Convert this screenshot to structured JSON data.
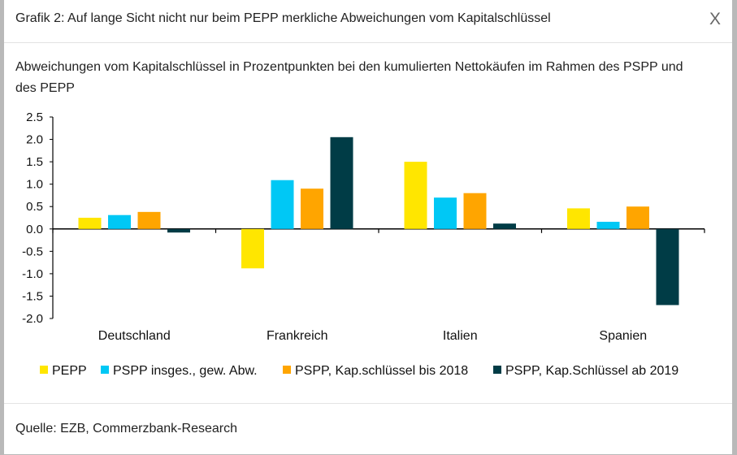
{
  "dialog": {
    "title": "Grafik 2: Auf lange Sicht nicht nur beim PEPP merkliche Abweichungen vom Kapitalschlüssel",
    "close_label": "X",
    "subtitle": "Abweichungen vom Kapitalschlüssel in Prozentpunkten bei den kumulierten Nettokäufen im Rahmen des PSPP und des PEPP",
    "source": "Quelle: EZB, Commerzbank-Research"
  },
  "chart_data": {
    "type": "bar",
    "title": "Abweichungen vom Kapitalschlüssel in Prozentpunkten bei den kumulierten Nettokäufen im Rahmen des PSPP und des PEPP",
    "xlabel": "",
    "ylabel": "",
    "categories": [
      "Deutschland",
      "Frankreich",
      "Italien",
      "Spanien"
    ],
    "ylim": [
      -2.0,
      2.5
    ],
    "yticks": [
      2.5,
      2.0,
      1.5,
      1.0,
      0.5,
      0.0,
      -0.5,
      -1.0,
      -1.5,
      -2.0
    ],
    "ytick_labels": [
      "2.5",
      "2.0",
      "1.5",
      "1.0",
      "0.5",
      "0.0",
      "-0.5",
      "-1.0",
      "-1.5",
      "-2.0"
    ],
    "grid": false,
    "legend_position": "bottom",
    "series": [
      {
        "name": "PEPP",
        "color": "#ffe600",
        "values": [
          0.25,
          -0.88,
          1.5,
          0.46
        ]
      },
      {
        "name": "PSPP insges., gew. Abw.",
        "color": "#00c8f5",
        "values": [
          0.31,
          1.09,
          0.7,
          0.16
        ]
      },
      {
        "name": "PSPP, Kap.schlüssel bis 2018",
        "color": "#ffa500",
        "values": [
          0.38,
          0.9,
          0.8,
          0.5
        ]
      },
      {
        "name": "PSPP, Kap.Schlüssel ab 2019",
        "color": "#003c46",
        "values": [
          -0.08,
          2.05,
          0.12,
          -1.7
        ]
      }
    ]
  }
}
